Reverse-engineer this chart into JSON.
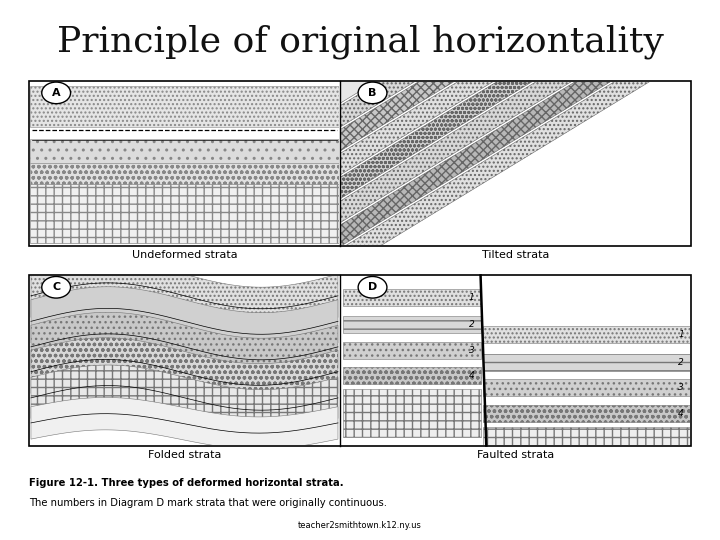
{
  "title": "Principle of original horizontality",
  "title_fontsize": 26,
  "background_color": "#ffffff",
  "figure_size": [
    7.2,
    5.4
  ],
  "dpi": 100,
  "label_A": "A",
  "label_B": "B",
  "label_C": "C",
  "label_D": "D",
  "caption_undeformed": "Undeformed strata",
  "caption_tilted": "Tilted strata",
  "caption_folded": "Folded strata",
  "caption_faulted": "Faulted strata",
  "figure_caption_bold": "Figure 12-1. Three types of deformed horizontal strata.",
  "figure_caption_normal": "The numbers in Diagram D mark strata that were originally continuous.",
  "source_text": "teacher2smithtown.k12.ny.us"
}
